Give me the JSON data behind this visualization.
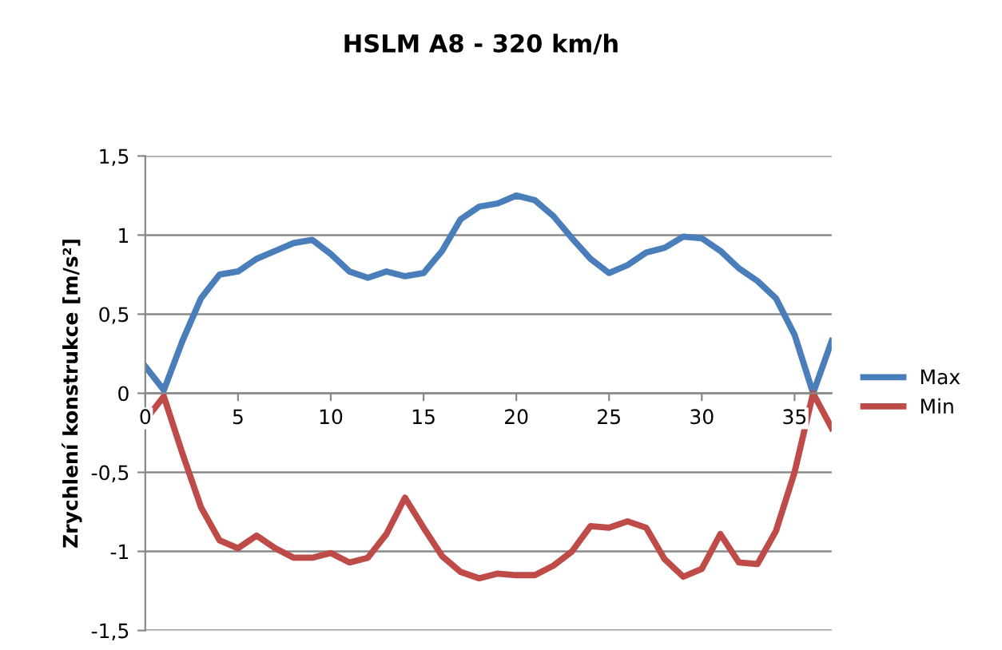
{
  "chart_data": {
    "type": "line",
    "title": "HSLM A8 - 320 km/h",
    "ylabel": "Zrychlení konstrukce [m/s²]",
    "x": [
      0,
      1,
      2,
      3,
      4,
      5,
      6,
      7,
      8,
      9,
      10,
      11,
      12,
      13,
      14,
      15,
      16,
      17,
      18,
      19,
      20,
      21,
      22,
      23,
      24,
      25,
      26,
      27,
      28,
      29,
      30,
      31,
      32,
      33,
      34,
      35,
      36,
      37
    ],
    "series": [
      {
        "name": "Max",
        "color": "#4a7ebb",
        "values": [
          0.17,
          0.02,
          0.33,
          0.6,
          0.75,
          0.77,
          0.85,
          0.9,
          0.95,
          0.97,
          0.88,
          0.77,
          0.73,
          0.77,
          0.74,
          0.76,
          0.9,
          1.1,
          1.18,
          1.2,
          1.25,
          1.22,
          1.12,
          0.98,
          0.85,
          0.76,
          0.81,
          0.89,
          0.92,
          0.99,
          0.98,
          0.9,
          0.79,
          0.71,
          0.6,
          0.37,
          0.0,
          0.33
        ]
      },
      {
        "name": "Min",
        "color": "#be4b48",
        "values": [
          -0.17,
          -0.02,
          -0.38,
          -0.72,
          -0.93,
          -0.98,
          -0.9,
          -0.98,
          -1.04,
          -1.04,
          -1.01,
          -1.07,
          -1.04,
          -0.89,
          -0.66,
          -0.85,
          -1.03,
          -1.13,
          -1.17,
          -1.14,
          -1.15,
          -1.15,
          -1.09,
          -1.0,
          -0.84,
          -0.85,
          -0.81,
          -0.85,
          -1.05,
          -1.16,
          -1.11,
          -0.89,
          -1.07,
          -1.08,
          -0.87,
          -0.5,
          0.0,
          -0.22
        ]
      }
    ],
    "xlim": [
      0,
      37
    ],
    "xticks": [
      0,
      5,
      10,
      15,
      20,
      25,
      30,
      35
    ],
    "ylim": [
      -1.5,
      1.5
    ],
    "yticks": [
      {
        "value": -1.5,
        "label": "-1,5"
      },
      {
        "value": -1,
        "label": "-1"
      },
      {
        "value": -0.5,
        "label": "-0,5"
      },
      {
        "value": 0,
        "label": "0"
      },
      {
        "value": 0.5,
        "label": "0,5"
      },
      {
        "value": 1,
        "label": "1"
      },
      {
        "value": 1.5,
        "label": "1,5"
      }
    ],
    "grid": "y",
    "legend": "right",
    "marker": "none",
    "line_style": "solid"
  }
}
